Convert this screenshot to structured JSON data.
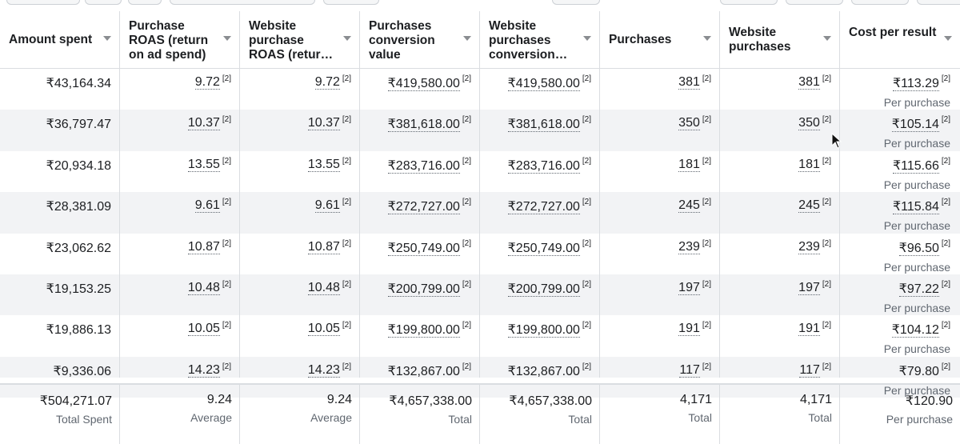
{
  "columns": [
    {
      "label": "Amount spent"
    },
    {
      "label": "Purchase ROAS (return on ad spend)"
    },
    {
      "label": "Website purchase ROAS (retur…"
    },
    {
      "label": "Purchases conversion value"
    },
    {
      "label": "Website purchases conversion…"
    },
    {
      "label": "Purchases"
    },
    {
      "label": "Website purchases"
    },
    {
      "label": "Cost per result"
    }
  ],
  "footnote_marker": "[2]",
  "cost_sublabel": "Per purchase",
  "rows": [
    {
      "amount": "₹43,164.34",
      "roas": "9.72",
      "web_roas": "9.72",
      "conv_value": "₹419,580.00",
      "web_conv": "₹419,580.00",
      "purchases": "381",
      "web_purchases": "381",
      "cost": "₹113.29"
    },
    {
      "amount": "₹36,797.47",
      "roas": "10.37",
      "web_roas": "10.37",
      "conv_value": "₹381,618.00",
      "web_conv": "₹381,618.00",
      "purchases": "350",
      "web_purchases": "350",
      "cost": "₹105.14"
    },
    {
      "amount": "₹20,934.18",
      "roas": "13.55",
      "web_roas": "13.55",
      "conv_value": "₹283,716.00",
      "web_conv": "₹283,716.00",
      "purchases": "181",
      "web_purchases": "181",
      "cost": "₹115.66"
    },
    {
      "amount": "₹28,381.09",
      "roas": "9.61",
      "web_roas": "9.61",
      "conv_value": "₹272,727.00",
      "web_conv": "₹272,727.00",
      "purchases": "245",
      "web_purchases": "245",
      "cost": "₹115.84"
    },
    {
      "amount": "₹23,062.62",
      "roas": "10.87",
      "web_roas": "10.87",
      "conv_value": "₹250,749.00",
      "web_conv": "₹250,749.00",
      "purchases": "239",
      "web_purchases": "239",
      "cost": "₹96.50"
    },
    {
      "amount": "₹19,153.25",
      "roas": "10.48",
      "web_roas": "10.48",
      "conv_value": "₹200,799.00",
      "web_conv": "₹200,799.00",
      "purchases": "197",
      "web_purchases": "197",
      "cost": "₹97.22"
    },
    {
      "amount": "₹19,886.13",
      "roas": "10.05",
      "web_roas": "10.05",
      "conv_value": "₹199,800.00",
      "web_conv": "₹199,800.00",
      "purchases": "191",
      "web_purchases": "191",
      "cost": "₹104.12"
    },
    {
      "amount": "₹9,336.06",
      "roas": "14.23",
      "web_roas": "14.23",
      "conv_value": "₹132,867.00",
      "web_conv": "₹132,867.00",
      "purchases": "117",
      "web_purchases": "117",
      "cost": "₹79.80"
    }
  ],
  "totals": [
    {
      "value": "₹504,271.07",
      "label": "Total Spent"
    },
    {
      "value": "9.24",
      "label": "Average"
    },
    {
      "value": "9.24",
      "label": "Average"
    },
    {
      "value": "₹4,657,338.00",
      "label": "Total"
    },
    {
      "value": "₹4,657,338.00",
      "label": "Total"
    },
    {
      "value": "4,171",
      "label": "Total"
    },
    {
      "value": "4,171",
      "label": "Total"
    },
    {
      "value": "₹120.90",
      "label": "Per purchase"
    }
  ]
}
